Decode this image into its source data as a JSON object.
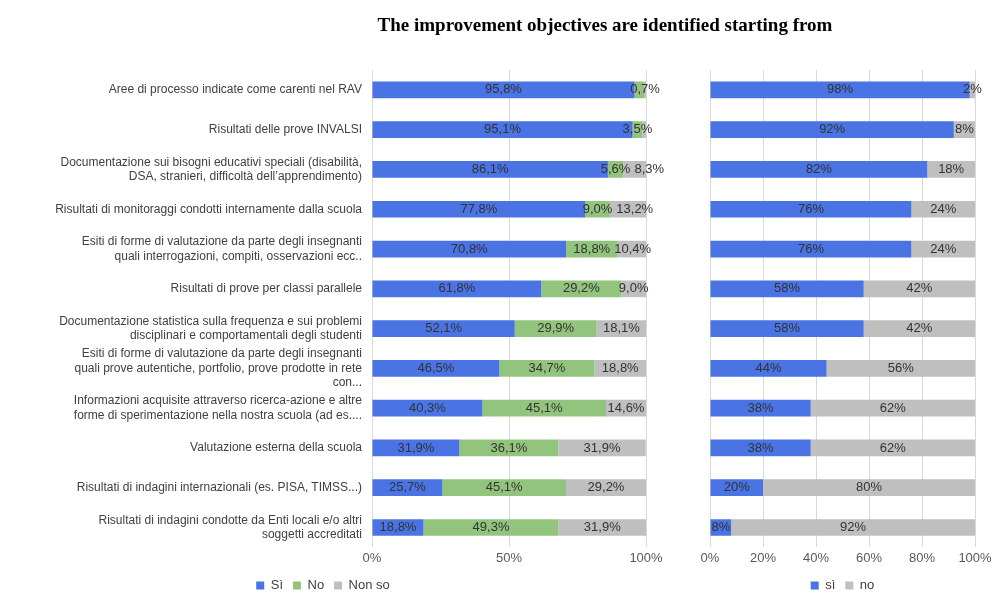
{
  "chart_data": [
    {
      "type": "bar",
      "title": "The improvement objectives are identified starting from",
      "orientation": "horizontal",
      "stacked": true,
      "categories": [
        "Aree di processo indicate come carenti nel RAV",
        "Risultati delle prove INVALSI",
        "Documentazione sui bisogni educativi speciali (disabilità, DSA, stranieri, difficoltà dell’apprendimento)",
        "Risultati di monitoraggi condotti internamente dalla scuola",
        "Esiti di forme di valutazione da parte degli insegnanti quali interrogazioni, compiti, osservazioni ecc..",
        "Risultati di prove per classi parallele",
        "Documentazione statistica sulla frequenza e sui problemi disciplinari e comportamentali degli studenti",
        "Esiti di forme di valutazione da parte degli insegnanti quali prove autentiche, portfolio, prove prodotte in rete con...",
        "Informazioni acquisite attraverso ricerca-azione e altre forme di sperimentazione nella nostra scuola (ad es....",
        "Valutazione esterna della scuola",
        "Risultati di indagini internazionali (es. PISA, TIMSS...)",
        "Risultati di indagini condotte da Enti locali e/o altri soggetti accreditati"
      ],
      "series": [
        {
          "name": "Sì",
          "color": "#4a73e3",
          "values": [
            95.8,
            95.1,
            86.1,
            77.8,
            70.8,
            61.8,
            52.1,
            46.5,
            40.3,
            31.9,
            25.7,
            18.8
          ],
          "value_labels": [
            "95,8%",
            "95,1%",
            "86,1%",
            "77,8%",
            "70,8%",
            "61,8%",
            "52,1%",
            "46,5%",
            "40,3%",
            "31,9%",
            "25,7%",
            "18,8%"
          ]
        },
        {
          "name": "No",
          "color": "#93c47d",
          "values": [
            3.5,
            3.5,
            5.6,
            9.0,
            18.8,
            29.2,
            29.9,
            34.7,
            45.1,
            36.1,
            45.1,
            49.3
          ],
          "value_labels": [
            null,
            "3,5%",
            "5,6%",
            "9,0%",
            "18,8%",
            "29,2%",
            "29,9%",
            "34,7%",
            "45,1%",
            "36,1%",
            "45,1%",
            "49,3%"
          ]
        },
        {
          "name": "Non so",
          "color": "#bfbfbf",
          "values": [
            0.7,
            1.4,
            8.3,
            13.2,
            10.4,
            9.0,
            18.1,
            18.8,
            14.6,
            31.9,
            29.2,
            31.9
          ],
          "value_labels": [
            "0,7%",
            null,
            "8,3%",
            "13,2%",
            "10,4%",
            "9,0%",
            "18,1%",
            "18,8%",
            "14,6%",
            "31,9%",
            "29,2%",
            "31,9%"
          ]
        }
      ],
      "xlim": [
        0,
        100
      ],
      "xticks": [
        {
          "value": 0,
          "label": "0%"
        },
        {
          "value": 50,
          "label": "50%"
        },
        {
          "value": 100,
          "label": "100%"
        }
      ],
      "grid": "x",
      "legend": "bottom"
    },
    {
      "type": "bar",
      "orientation": "horizontal",
      "stacked": true,
      "categories": [
        null,
        null,
        null,
        null,
        null,
        null,
        null,
        null,
        null,
        null,
        null,
        null
      ],
      "series": [
        {
          "name": "sì",
          "color": "#4a73e3",
          "values": [
            98,
            92,
            82,
            76,
            76,
            58,
            58,
            44,
            38,
            38,
            20,
            8
          ],
          "value_labels": [
            "98%",
            "92%",
            "82%",
            "76%",
            "76%",
            "58%",
            "58%",
            "44%",
            "38%",
            "38%",
            "20%",
            "8%"
          ]
        },
        {
          "name": "no",
          "color": "#bfbfbf",
          "values": [
            2,
            8,
            18,
            24,
            24,
            42,
            42,
            56,
            62,
            62,
            80,
            92
          ],
          "value_labels": [
            "2%",
            "8%",
            "18%",
            "24%",
            "24%",
            "42%",
            "42%",
            "56%",
            "62%",
            "62%",
            "80%",
            "92%"
          ]
        }
      ],
      "xlim": [
        0,
        100
      ],
      "xticks": [
        {
          "value": 0,
          "label": "0%"
        },
        {
          "value": 20,
          "label": "20%"
        },
        {
          "value": 40,
          "label": "40%"
        },
        {
          "value": 60,
          "label": "60%"
        },
        {
          "value": 80,
          "label": "80%"
        },
        {
          "value": 100,
          "label": "100%"
        }
      ],
      "grid": "x",
      "legend": "bottom",
      "tick_labels": "x"
    }
  ]
}
